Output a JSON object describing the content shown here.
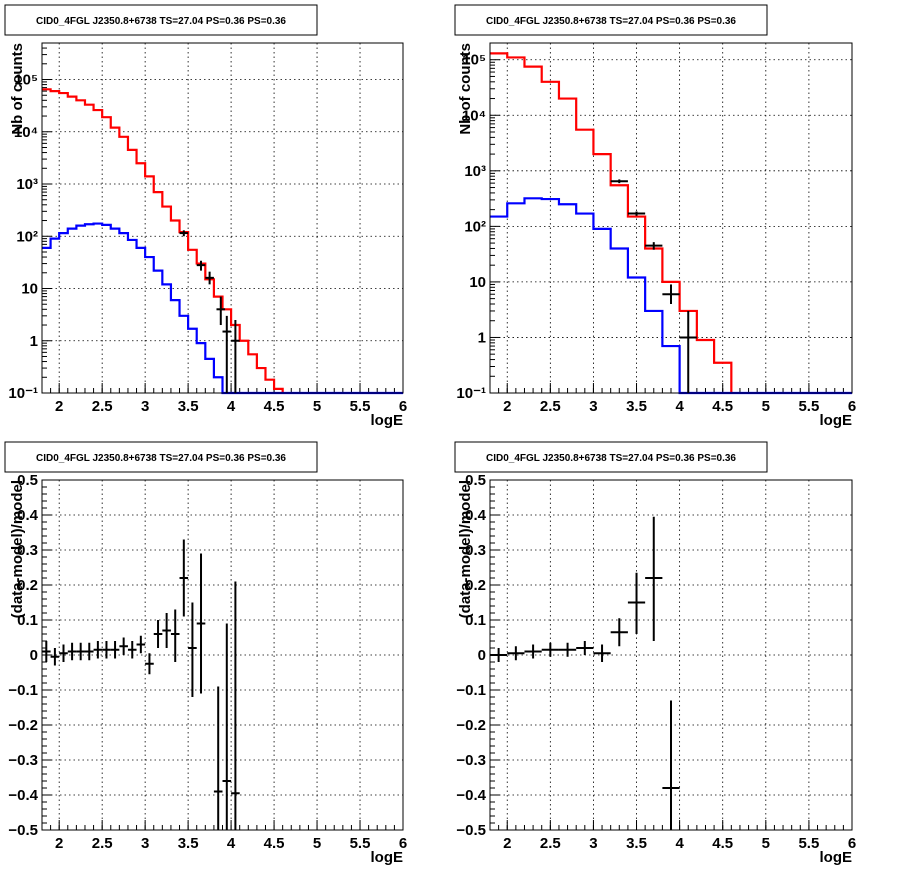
{
  "colors": {
    "model": "#ff0000",
    "component": "#0000ff",
    "data": "#000000",
    "grid": "#000000"
  },
  "chart_data": [
    {
      "type": "line",
      "title": "CID0_4FGL J2350.8+6738 TS=27.04 PS=0.36 PS=0.36",
      "xlabel": "logE",
      "ylabel": "Nb of counts",
      "xlim": [
        1.8,
        6.0
      ],
      "ylim": [
        0.1,
        500000
      ],
      "yscale": "log",
      "grid": true,
      "xticks": [
        "2",
        "2.5",
        "3",
        "3.5",
        "4",
        "4.5",
        "5",
        "5.5",
        "6"
      ],
      "yticks": [
        "10⁻¹",
        "1",
        "10",
        "10²",
        "10³",
        "10⁴",
        "10⁵"
      ],
      "series": [
        {
          "style": "step",
          "color": "#ff0000",
          "edges": [
            1.8,
            1.9,
            2.0,
            2.1,
            2.2,
            2.3,
            2.4,
            2.5,
            2.6,
            2.7,
            2.8,
            2.9,
            3.0,
            3.1,
            3.2,
            3.3,
            3.4,
            3.5,
            3.6,
            3.7,
            3.8,
            3.9,
            4.0,
            4.1,
            4.2,
            4.3,
            4.4,
            4.5,
            4.6
          ],
          "values": [
            65000,
            60000,
            55000,
            47000,
            40000,
            33000,
            26000,
            19000,
            12000,
            8000,
            4500,
            2500,
            1400,
            700,
            370,
            200,
            120,
            55,
            30,
            15,
            7,
            4,
            2,
            1,
            0.55,
            0.3,
            0.18,
            0.12
          ]
        },
        {
          "style": "step",
          "color": "#0000ff",
          "edges": [
            1.8,
            1.9,
            2.0,
            2.1,
            2.2,
            2.3,
            2.4,
            2.5,
            2.6,
            2.7,
            2.8,
            2.9,
            3.0,
            3.1,
            3.2,
            3.3,
            3.4,
            3.5,
            3.6,
            3.7,
            3.8,
            3.9,
            4.0,
            4.1,
            4.2,
            4.3,
            4.4,
            4.5,
            4.6,
            4.7,
            4.8,
            4.9,
            5.0,
            5.1,
            5.2,
            5.3,
            5.4,
            5.5,
            5.6,
            5.7,
            5.8,
            5.9,
            6.0
          ],
          "values": [
            60,
            90,
            115,
            140,
            160,
            170,
            175,
            165,
            140,
            115,
            85,
            60,
            40,
            22,
            12,
            6,
            3,
            1.7,
            0.9,
            0.45,
            0.2,
            0.1,
            0.1,
            0.1,
            0.1,
            0.1,
            0.1,
            0.1,
            0.1,
            0.1,
            0.1,
            0.1,
            0.1,
            0.1,
            0.1,
            0.1,
            0.1,
            0.1,
            0.1,
            0.1,
            0.1,
            0.1
          ]
        },
        {
          "style": "points",
          "color": "#000000",
          "points": [
            {
              "x": 3.45,
              "y": 115,
              "lo": 100,
              "hi": 130,
              "xw": 0.05
            },
            {
              "x": 3.65,
              "y": 28,
              "lo": 22,
              "hi": 34,
              "xw": 0.05
            },
            {
              "x": 3.75,
              "y": 16,
              "lo": 12,
              "hi": 21,
              "xw": 0.05
            },
            {
              "x": 3.88,
              "y": 4,
              "lo": 2,
              "hi": 7,
              "xw": 0.05
            },
            {
              "x": 3.95,
              "y": 1.5,
              "lo": 0.1,
              "hi": 3,
              "xw": 0.05
            },
            {
              "x": 4.05,
              "y": 1,
              "lo": 0.1,
              "hi": 2.5,
              "xw": 0.05
            }
          ]
        }
      ]
    },
    {
      "type": "line",
      "title": "CID0_4FGL J2350.8+6738 TS=27.04 PS=0.36 PS=0.36",
      "xlabel": "logE",
      "ylabel": "Nb of counts",
      "xlim": [
        1.8,
        6.0
      ],
      "ylim": [
        0.1,
        200000
      ],
      "yscale": "log",
      "grid": true,
      "xticks": [
        "2",
        "2.5",
        "3",
        "3.5",
        "4",
        "4.5",
        "5",
        "5.5",
        "6"
      ],
      "yticks": [
        "10⁻¹",
        "1",
        "10",
        "10²",
        "10³",
        "10⁴",
        "10⁵"
      ],
      "series": [
        {
          "style": "step",
          "color": "#ff0000",
          "edges": [
            1.8,
            2.0,
            2.2,
            2.4,
            2.6,
            2.8,
            3.0,
            3.2,
            3.4,
            3.6,
            3.8,
            4.0,
            4.2,
            4.4,
            4.6
          ],
          "values": [
            130000,
            110000,
            75000,
            40000,
            20000,
            5500,
            2000,
            550,
            150,
            40,
            10,
            3,
            0.9,
            0.35
          ]
        },
        {
          "style": "step",
          "color": "#0000ff",
          "edges": [
            1.8,
            2.0,
            2.2,
            2.4,
            2.6,
            2.8,
            3.0,
            3.2,
            3.4,
            3.6,
            3.8,
            4.0,
            4.2,
            4.4,
            4.6,
            4.8,
            5.0,
            5.2,
            5.4,
            5.6,
            5.8,
            6.0
          ],
          "values": [
            150,
            260,
            320,
            310,
            250,
            170,
            90,
            40,
            12,
            3,
            0.7,
            0.1,
            0.1,
            0.1,
            0.1,
            0.1,
            0.1,
            0.1,
            0.1,
            0.1,
            0.1
          ]
        },
        {
          "style": "points",
          "color": "#000000",
          "points": [
            {
              "x": 3.3,
              "y": 650,
              "lo": 600,
              "hi": 700,
              "xw": 0.1
            },
            {
              "x": 3.5,
              "y": 170,
              "lo": 155,
              "hi": 185,
              "xw": 0.1
            },
            {
              "x": 3.7,
              "y": 45,
              "lo": 38,
              "hi": 52,
              "xw": 0.1
            },
            {
              "x": 3.9,
              "y": 6,
              "lo": 4,
              "hi": 9,
              "xw": 0.1
            },
            {
              "x": 4.1,
              "y": 1,
              "lo": 0.1,
              "hi": 3,
              "xw": 0.1
            }
          ]
        }
      ]
    },
    {
      "type": "scatter",
      "title": "CID0_4FGL J2350.8+6738 TS=27.04 PS=0.36 PS=0.36",
      "xlabel": "logE",
      "ylabel": "(data-model)/model",
      "xlim": [
        1.8,
        6.0
      ],
      "ylim": [
        -0.5,
        0.5
      ],
      "yscale": "linear",
      "grid": true,
      "xticks": [
        "2",
        "2.5",
        "3",
        "3.5",
        "4",
        "4.5",
        "5",
        "5.5",
        "6"
      ],
      "yticks": [
        "−0.5",
        "−0.4",
        "−0.3",
        "−0.2",
        "−0.1",
        "0",
        "0.1",
        "0.2",
        "0.3",
        "0.4",
        "0.5"
      ],
      "series": [
        {
          "style": "points",
          "color": "#000000",
          "points": [
            {
              "x": 1.85,
              "y": 0.01,
              "lo": -0.02,
              "hi": 0.04,
              "xw": 0.05
            },
            {
              "x": 1.95,
              "y": -0.005,
              "lo": -0.03,
              "hi": 0.02,
              "xw": 0.05
            },
            {
              "x": 2.05,
              "y": 0.005,
              "lo": -0.02,
              "hi": 0.03,
              "xw": 0.05
            },
            {
              "x": 2.15,
              "y": 0.01,
              "lo": -0.015,
              "hi": 0.035,
              "xw": 0.05
            },
            {
              "x": 2.25,
              "y": 0.01,
              "lo": -0.015,
              "hi": 0.035,
              "xw": 0.05
            },
            {
              "x": 2.35,
              "y": 0.01,
              "lo": -0.015,
              "hi": 0.035,
              "xw": 0.05
            },
            {
              "x": 2.45,
              "y": 0.015,
              "lo": -0.01,
              "hi": 0.04,
              "xw": 0.05
            },
            {
              "x": 2.55,
              "y": 0.015,
              "lo": -0.01,
              "hi": 0.04,
              "xw": 0.05
            },
            {
              "x": 2.65,
              "y": 0.015,
              "lo": -0.01,
              "hi": 0.04,
              "xw": 0.05
            },
            {
              "x": 2.75,
              "y": 0.025,
              "lo": 0.0,
              "hi": 0.05,
              "xw": 0.05
            },
            {
              "x": 2.85,
              "y": 0.015,
              "lo": -0.01,
              "hi": 0.04,
              "xw": 0.05
            },
            {
              "x": 2.95,
              "y": 0.03,
              "lo": 0.005,
              "hi": 0.055,
              "xw": 0.05
            },
            {
              "x": 3.05,
              "y": -0.025,
              "lo": -0.055,
              "hi": 0.005,
              "xw": 0.05
            },
            {
              "x": 3.15,
              "y": 0.06,
              "lo": 0.02,
              "hi": 0.1,
              "xw": 0.05
            },
            {
              "x": 3.25,
              "y": 0.07,
              "lo": 0.02,
              "hi": 0.12,
              "xw": 0.05
            },
            {
              "x": 3.35,
              "y": 0.06,
              "lo": -0.02,
              "hi": 0.13,
              "xw": 0.05
            },
            {
              "x": 3.45,
              "y": 0.22,
              "lo": 0.11,
              "hi": 0.33,
              "xw": 0.05
            },
            {
              "x": 3.55,
              "y": 0.02,
              "lo": -0.12,
              "hi": 0.15,
              "xw": 0.05
            },
            {
              "x": 3.65,
              "y": 0.09,
              "lo": -0.11,
              "hi": 0.29,
              "xw": 0.05
            },
            {
              "x": 3.85,
              "y": -0.39,
              "lo": -0.5,
              "hi": -0.09,
              "xw": 0.05
            },
            {
              "x": 3.95,
              "y": -0.36,
              "lo": -0.5,
              "hi": 0.09,
              "xw": 0.05
            },
            {
              "x": 4.05,
              "y": -0.395,
              "lo": -0.5,
              "hi": 0.21,
              "xw": 0.05
            }
          ]
        }
      ]
    },
    {
      "type": "scatter",
      "title": "CID0_4FGL J2350.8+6738 TS=27.04 PS=0.36 PS=0.36",
      "xlabel": "logE",
      "ylabel": "(data-model)/model",
      "xlim": [
        1.8,
        6.0
      ],
      "ylim": [
        -0.5,
        0.5
      ],
      "yscale": "linear",
      "grid": true,
      "xticks": [
        "2",
        "2.5",
        "3",
        "3.5",
        "4",
        "4.5",
        "5",
        "5.5",
        "6"
      ],
      "yticks": [
        "−0.5",
        "−0.4",
        "−0.3",
        "−0.2",
        "−0.1",
        "0",
        "0.1",
        "0.2",
        "0.3",
        "0.4",
        "0.5"
      ],
      "series": [
        {
          "style": "points",
          "color": "#000000",
          "points": [
            {
              "x": 1.9,
              "y": 0.0,
              "lo": -0.02,
              "hi": 0.02,
              "xw": 0.1
            },
            {
              "x": 2.1,
              "y": 0.005,
              "lo": -0.015,
              "hi": 0.025,
              "xw": 0.1
            },
            {
              "x": 2.3,
              "y": 0.01,
              "lo": -0.01,
              "hi": 0.03,
              "xw": 0.1
            },
            {
              "x": 2.5,
              "y": 0.015,
              "lo": -0.005,
              "hi": 0.035,
              "xw": 0.1
            },
            {
              "x": 2.7,
              "y": 0.015,
              "lo": -0.005,
              "hi": 0.035,
              "xw": 0.1
            },
            {
              "x": 2.9,
              "y": 0.02,
              "lo": -0.0,
              "hi": 0.04,
              "xw": 0.1
            },
            {
              "x": 3.1,
              "y": 0.005,
              "lo": -0.02,
              "hi": 0.03,
              "xw": 0.1
            },
            {
              "x": 3.3,
              "y": 0.065,
              "lo": 0.025,
              "hi": 0.105,
              "xw": 0.1
            },
            {
              "x": 3.5,
              "y": 0.15,
              "lo": 0.06,
              "hi": 0.235,
              "xw": 0.1
            },
            {
              "x": 3.7,
              "y": 0.22,
              "lo": 0.04,
              "hi": 0.395,
              "xw": 0.1
            },
            {
              "x": 3.9,
              "y": -0.38,
              "lo": -0.5,
              "hi": -0.13,
              "xw": 0.1
            }
          ]
        }
      ]
    }
  ]
}
